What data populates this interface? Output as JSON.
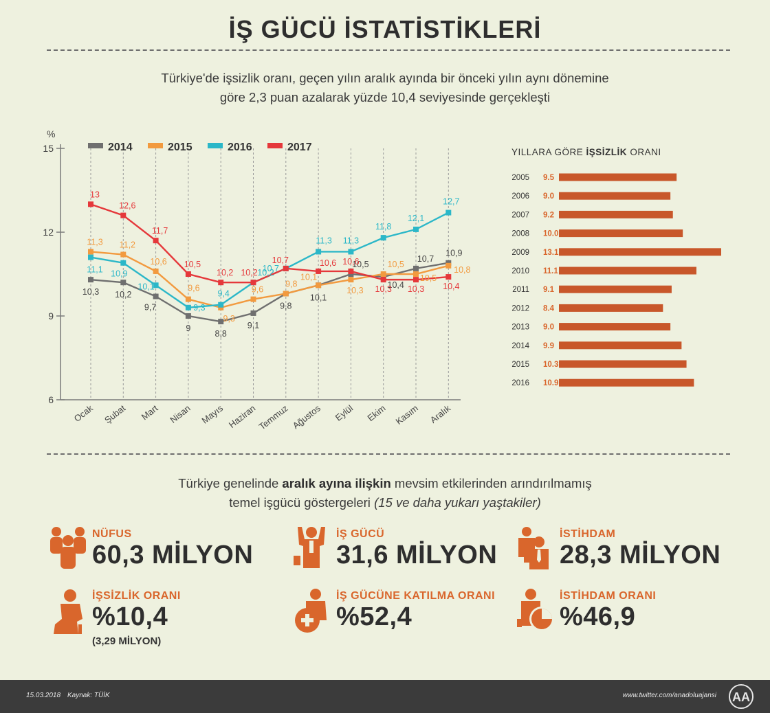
{
  "header": {
    "title": "İŞ GÜCÜ İSTATİSTİKLERİ",
    "subtitle_line1": "Türkiye'de işsizlik oranı, geçen yılın aralık ayında bir önceki yılın aynı dönemine",
    "subtitle_line2": "göre 2,3 puan azalarak yüzde 10,4 seviyesinde gerçekleşti"
  },
  "colors": {
    "2014": "#6f6f6f",
    "2015": "#f29a3f",
    "2016": "#2bb7c8",
    "2017": "#e5383b",
    "bar": "#c8572a",
    "accent": "#d9662c"
  },
  "chart_data": [
    {
      "type": "line",
      "unit_label": "%",
      "ylim": [
        6,
        15
      ],
      "yticks": [
        6,
        9,
        12,
        15
      ],
      "categories": [
        "Ocak",
        "Şubat",
        "Mart",
        "Nisan",
        "Mayıs",
        "Haziran",
        "Temmuz",
        "Ağustos",
        "Eylül",
        "Ekim",
        "Kasım",
        "Aralık"
      ],
      "series": [
        {
          "name": "2014",
          "values": [
            10.3,
            10.2,
            9.7,
            9.0,
            8.8,
            9.1,
            9.8,
            10.1,
            10.5,
            10.4,
            10.7,
            10.9
          ],
          "labels": [
            "10,3",
            "10,2",
            "9,7",
            "9",
            "8,8",
            "9,1",
            "9,8",
            "10,1",
            "10,5",
            "10,4",
            "10,7",
            "10,9"
          ]
        },
        {
          "name": "2015",
          "values": [
            11.3,
            11.2,
            10.6,
            9.6,
            9.3,
            9.6,
            9.8,
            10.1,
            10.3,
            10.5,
            10.5,
            10.8
          ],
          "labels": [
            "11,3",
            "11,2",
            "10,6",
            "9,6",
            "9,3",
            "9,6",
            "9,8",
            "10,1",
            "10,3",
            "10,5",
            "10,5",
            "10,8"
          ]
        },
        {
          "name": "2016",
          "values": [
            11.1,
            10.9,
            10.1,
            9.3,
            9.4,
            10.2,
            10.7,
            11.3,
            11.3,
            11.8,
            12.1,
            12.7
          ],
          "labels": [
            "11,1",
            "10,9",
            "10,1",
            "9,3",
            "9,4",
            "10,2",
            "10,7",
            "11,3",
            "11,3",
            "11,8",
            "12,1",
            "12,7"
          ]
        },
        {
          "name": "2017",
          "values": [
            13.0,
            12.6,
            11.7,
            10.5,
            10.2,
            10.2,
            10.7,
            10.6,
            10.6,
            10.3,
            10.3,
            10.4
          ],
          "labels": [
            "13",
            "12,6",
            "11,7",
            "10,5",
            "10,2",
            "10,2",
            "10,7",
            "10,6",
            "10,6",
            "10,3",
            "10,3",
            "10,4"
          ]
        }
      ],
      "legend": "top-left",
      "grid": "vertical dashed"
    },
    {
      "type": "bar",
      "title_pre": "YILLARA GÖRE ",
      "title_bold": "İŞSİZLİK",
      "title_post": " ORANI",
      "categories": [
        "2005",
        "2006",
        "2007",
        "2008",
        "2009",
        "2010",
        "2011",
        "2012",
        "2013",
        "2014",
        "2015",
        "2016"
      ],
      "values": [
        9.5,
        9.0,
        9.2,
        10.0,
        13.1,
        11.1,
        9.1,
        8.4,
        9.0,
        9.9,
        10.3,
        10.9
      ],
      "labels": [
        "9.5",
        "9.0",
        "9.2",
        "10.0",
        "13.1",
        "11.1",
        "9.1",
        "8.4",
        "9.0",
        "9.9",
        "10.3",
        "10.9"
      ],
      "orientation": "horizontal"
    }
  ],
  "section": {
    "intro_pre": "Türkiye genelinde ",
    "intro_bold": "aralık ayına ilişkin",
    "intro_post": " mevsim etkilerinden arındırılmamış",
    "line2_pre": "temel işgücü göstergeleri ",
    "line2_italic": "(15 ve daha yukarı yaştakiler)"
  },
  "stats": {
    "nufus": {
      "label": "NÜFUS",
      "value": "60,3 MİLYON"
    },
    "isgucu": {
      "label": "İŞ GÜCÜ",
      "value": "31,6 MİLYON"
    },
    "istihdam": {
      "label": "İSTİHDAM",
      "value": "28,3 MİLYON"
    },
    "issizlik": {
      "label": "İŞSİZLİK ORANI",
      "value": "%10,4",
      "sub": "(3,29 MİLYON)"
    },
    "katilma": {
      "label": "İŞ GÜCÜNE KATILMA ORANI",
      "value": "%52,4"
    },
    "istihdam_orani": {
      "label": "İSTİHDAM ORANI",
      "value": "%46,9"
    }
  },
  "footer": {
    "date": "15.03.2018",
    "source": "Kaynak: TÜİK",
    "twitter": "www.twitter.com/anadoluajansi",
    "logo_text": "AA"
  }
}
